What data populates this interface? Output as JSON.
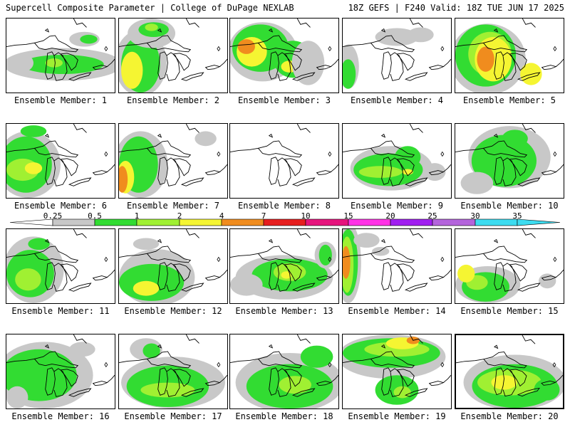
{
  "header": {
    "title": "Supercell Composite Parameter | College of DuPage NEXLAB",
    "run_info": "18Z GEFS | F240 Valid: 18Z TUE JUN 17 2025"
  },
  "member_label_prefix": "Ensemble Member:",
  "members": [
    1,
    2,
    3,
    4,
    5,
    6,
    7,
    8,
    9,
    10,
    11,
    12,
    13,
    14,
    15,
    16,
    17,
    18,
    19,
    20
  ],
  "highlighted_member": 20,
  "legend": {
    "thresholds": [
      "0.25",
      "0.5",
      "1",
      "2",
      "4",
      "7",
      "10",
      "15",
      "20",
      "25",
      "30",
      "35"
    ],
    "colors": [
      "#ffffff",
      "#c8c8c8",
      "#32dc32",
      "#a0f032",
      "#f5f532",
      "#f08c1e",
      "#e61e1e",
      "#e6147d",
      "#ff32e6",
      "#a01ef0",
      "#b464dc",
      "#3cdcf0",
      "#3cdcf0"
    ]
  },
  "blobs": {
    "1": [
      [
        1,
        0.52,
        0.62,
        0.55,
        0.22
      ],
      [
        2,
        0.52,
        0.62,
        0.38,
        0.13
      ],
      [
        3,
        0.44,
        0.6,
        0.08,
        0.06
      ],
      [
        1,
        0.72,
        0.28,
        0.14,
        0.1
      ],
      [
        2,
        0.76,
        0.28,
        0.08,
        0.06
      ],
      [
        1,
        0.15,
        0.6,
        0.1,
        0.12
      ]
    ],
    "2": [
      [
        1,
        0.2,
        0.6,
        0.24,
        0.45
      ],
      [
        2,
        0.2,
        0.62,
        0.18,
        0.38
      ],
      [
        4,
        0.12,
        0.7,
        0.1,
        0.25
      ],
      [
        1,
        0.3,
        0.2,
        0.22,
        0.2
      ],
      [
        2,
        0.32,
        0.15,
        0.14,
        0.1
      ],
      [
        3,
        0.3,
        0.12,
        0.06,
        0.05
      ]
    ],
    "3": [
      [
        1,
        0.3,
        0.45,
        0.32,
        0.4
      ],
      [
        2,
        0.28,
        0.4,
        0.26,
        0.32
      ],
      [
        4,
        0.2,
        0.45,
        0.14,
        0.2
      ],
      [
        5,
        0.15,
        0.38,
        0.08,
        0.1
      ],
      [
        2,
        0.58,
        0.55,
        0.18,
        0.25
      ],
      [
        4,
        0.55,
        0.65,
        0.08,
        0.08
      ],
      [
        1,
        0.72,
        0.6,
        0.15,
        0.3
      ]
    ],
    "4": [
      [
        1,
        0.05,
        0.65,
        0.1,
        0.3
      ],
      [
        2,
        0.05,
        0.75,
        0.07,
        0.2
      ],
      [
        1,
        0.5,
        0.25,
        0.2,
        0.12
      ],
      [
        1,
        0.72,
        0.22,
        0.12,
        0.1
      ]
    ],
    "5": [
      [
        1,
        0.3,
        0.55,
        0.35,
        0.48
      ],
      [
        2,
        0.28,
        0.5,
        0.28,
        0.42
      ],
      [
        3,
        0.32,
        0.48,
        0.2,
        0.3
      ],
      [
        4,
        0.35,
        0.55,
        0.17,
        0.3
      ],
      [
        5,
        0.28,
        0.55,
        0.08,
        0.17
      ],
      [
        4,
        0.7,
        0.75,
        0.1,
        0.15
      ]
    ],
    "6": [
      [
        1,
        0.2,
        0.55,
        0.3,
        0.45
      ],
      [
        2,
        0.18,
        0.55,
        0.24,
        0.38
      ],
      [
        3,
        0.15,
        0.62,
        0.15,
        0.15
      ],
      [
        4,
        0.25,
        0.6,
        0.08,
        0.08
      ],
      [
        2,
        0.25,
        0.1,
        0.12,
        0.08
      ]
    ],
    "7": [
      [
        1,
        0.2,
        0.55,
        0.25,
        0.45
      ],
      [
        2,
        0.18,
        0.55,
        0.18,
        0.38
      ],
      [
        4,
        0.06,
        0.72,
        0.08,
        0.22
      ],
      [
        5,
        0.03,
        0.75,
        0.05,
        0.18
      ],
      [
        1,
        0.8,
        0.2,
        0.1,
        0.1
      ]
    ],
    "8": [],
    "9": [
      [
        1,
        0.45,
        0.6,
        0.38,
        0.3
      ],
      [
        2,
        0.42,
        0.62,
        0.32,
        0.22
      ],
      [
        3,
        0.35,
        0.65,
        0.2,
        0.08
      ],
      [
        4,
        0.6,
        0.65,
        0.05,
        0.04
      ],
      [
        2,
        0.6,
        0.45,
        0.12,
        0.15
      ],
      [
        1,
        0.85,
        0.65,
        0.1,
        0.12
      ]
    ],
    "10": [
      [
        1,
        0.5,
        0.45,
        0.38,
        0.42
      ],
      [
        2,
        0.45,
        0.5,
        0.3,
        0.35
      ],
      [
        2,
        0.55,
        0.2,
        0.12,
        0.12
      ],
      [
        1,
        0.2,
        0.8,
        0.15,
        0.15
      ]
    ],
    "11": [
      [
        1,
        0.25,
        0.55,
        0.28,
        0.45
      ],
      [
        2,
        0.22,
        0.6,
        0.22,
        0.32
      ],
      [
        3,
        0.2,
        0.68,
        0.12,
        0.15
      ],
      [
        2,
        0.3,
        0.2,
        0.1,
        0.08
      ]
    ],
    "12": [
      [
        1,
        0.35,
        0.65,
        0.35,
        0.38
      ],
      [
        2,
        0.3,
        0.72,
        0.3,
        0.25
      ],
      [
        4,
        0.25,
        0.8,
        0.12,
        0.1
      ],
      [
        1,
        0.25,
        0.2,
        0.12,
        0.08
      ]
    ],
    "13": [
      [
        1,
        0.5,
        0.65,
        0.45,
        0.3
      ],
      [
        2,
        0.55,
        0.62,
        0.35,
        0.22
      ],
      [
        3,
        0.55,
        0.58,
        0.15,
        0.12
      ],
      [
        4,
        0.52,
        0.62,
        0.05,
        0.05
      ],
      [
        1,
        0.88,
        0.35,
        0.1,
        0.18
      ],
      [
        2,
        0.88,
        0.35,
        0.06,
        0.14
      ],
      [
        1,
        0.15,
        0.75,
        0.15,
        0.15
      ]
    ],
    "14": [
      [
        1,
        0.05,
        0.45,
        0.12,
        0.55
      ],
      [
        2,
        0.05,
        0.45,
        0.09,
        0.45
      ],
      [
        3,
        0.04,
        0.48,
        0.06,
        0.38
      ],
      [
        5,
        0.03,
        0.45,
        0.04,
        0.22
      ],
      [
        1,
        0.22,
        0.15,
        0.12,
        0.1
      ],
      [
        1,
        0.35,
        0.3,
        0.08,
        0.06
      ]
    ],
    "15": [
      [
        1,
        0.3,
        0.75,
        0.3,
        0.25
      ],
      [
        2,
        0.28,
        0.78,
        0.22,
        0.2
      ],
      [
        3,
        0.2,
        0.72,
        0.1,
        0.1
      ],
      [
        4,
        0.1,
        0.6,
        0.08,
        0.12
      ],
      [
        1,
        0.85,
        0.7,
        0.08,
        0.1
      ]
    ],
    "16": [
      [
        1,
        0.35,
        0.55,
        0.45,
        0.45
      ],
      [
        2,
        0.3,
        0.55,
        0.35,
        0.35
      ],
      [
        1,
        0.7,
        0.2,
        0.12,
        0.1
      ],
      [
        1,
        0.1,
        0.85,
        0.1,
        0.15
      ]
    ],
    "17": [
      [
        1,
        0.5,
        0.65,
        0.48,
        0.35
      ],
      [
        2,
        0.45,
        0.7,
        0.38,
        0.28
      ],
      [
        3,
        0.45,
        0.75,
        0.25,
        0.1
      ],
      [
        1,
        0.25,
        0.2,
        0.15,
        0.15
      ],
      [
        2,
        0.3,
        0.22,
        0.08,
        0.1
      ]
    ],
    "18": [
      [
        1,
        0.55,
        0.65,
        0.5,
        0.4
      ],
      [
        2,
        0.55,
        0.7,
        0.4,
        0.3
      ],
      [
        3,
        0.6,
        0.68,
        0.15,
        0.12
      ],
      [
        2,
        0.8,
        0.3,
        0.15,
        0.15
      ]
    ],
    "19": [
      [
        1,
        0.45,
        0.3,
        0.5,
        0.3
      ],
      [
        2,
        0.45,
        0.25,
        0.45,
        0.2
      ],
      [
        3,
        0.5,
        0.2,
        0.3,
        0.1
      ],
      [
        4,
        0.55,
        0.12,
        0.15,
        0.08
      ],
      [
        5,
        0.65,
        0.08,
        0.06,
        0.05
      ],
      [
        2,
        0.5,
        0.75,
        0.2,
        0.2
      ],
      [
        3,
        0.55,
        0.78,
        0.08,
        0.08
      ]
    ],
    "20": [
      [
        1,
        0.55,
        0.65,
        0.48,
        0.38
      ],
      [
        2,
        0.55,
        0.7,
        0.4,
        0.3
      ],
      [
        3,
        0.5,
        0.65,
        0.3,
        0.18
      ],
      [
        4,
        0.45,
        0.65,
        0.12,
        0.1
      ],
      [
        2,
        0.85,
        0.75,
        0.12,
        0.15
      ]
    ]
  }
}
